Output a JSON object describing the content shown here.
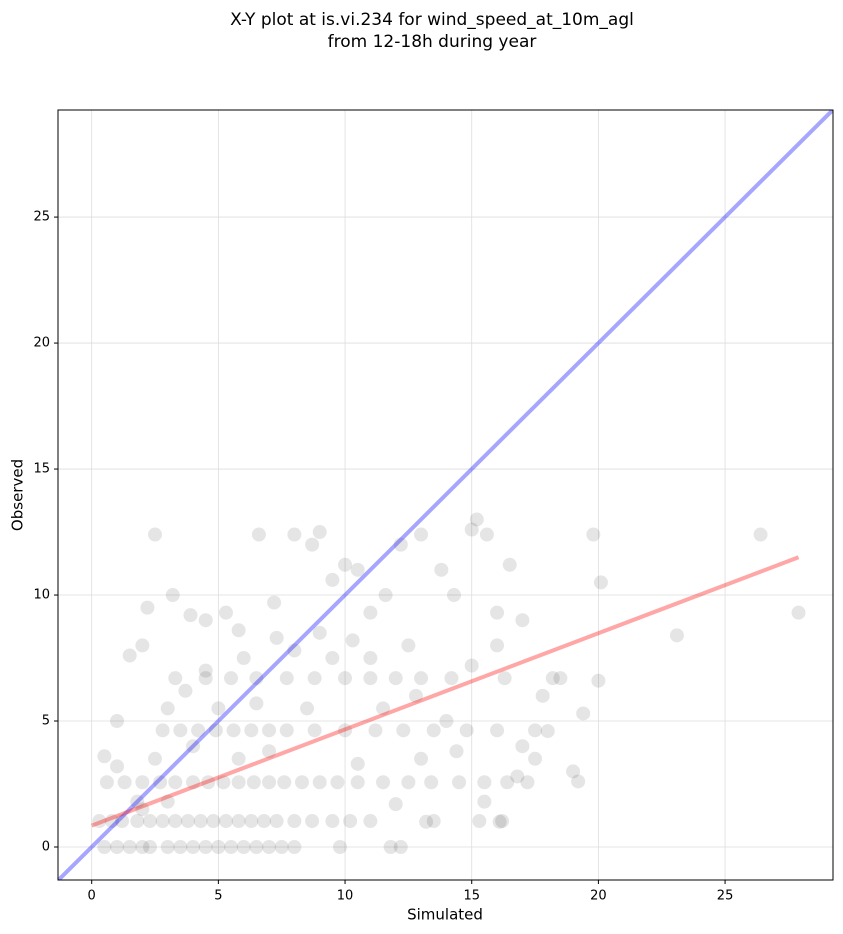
{
  "chart_data": {
    "type": "scatter",
    "title": [
      "X-Y plot at is.vi.234 for wind_speed_at_10m_agl",
      "from 12-18h during year"
    ],
    "x_label": "Simulated",
    "y_label": "Observed",
    "xlim": [
      -1.33,
      29.26
    ],
    "ylim": [
      -1.31,
      29.25
    ],
    "xticks": [
      0,
      5,
      10,
      15,
      20,
      25
    ],
    "yticks": [
      0,
      5,
      10,
      15,
      20,
      25
    ],
    "grid": true,
    "color": "#000000",
    "x": [
      0.5,
      1,
      1.5,
      2,
      2.3,
      3,
      3.5,
      4,
      4.5,
      5,
      5.5,
      6,
      6.5,
      7,
      7.5,
      8,
      9.8,
      11.8,
      12.2,
      0.3,
      0.8,
      1.2,
      1.8,
      2.3,
      2.8,
      3.3,
      3.8,
      4.3,
      4.8,
      5.3,
      5.8,
      6.3,
      6.8,
      7.3,
      8,
      8.7,
      9.5,
      10.2,
      11,
      13.5,
      15.3,
      16.2,
      0.6,
      1.3,
      2,
      2.7,
      3.3,
      4,
      4.6,
      5.2,
      5.8,
      6.4,
      7,
      7.6,
      8.3,
      9,
      9.7,
      10.5,
      11.5,
      12.5,
      13.4,
      14.5,
      15.5,
      16.4,
      17.2,
      2.8,
      3.5,
      4.2,
      4.9,
      5.6,
      6.3,
      7,
      7.7,
      8.8,
      10,
      11.2,
      12.3,
      13.5,
      14.8,
      16,
      17.5,
      3.3,
      4.5,
      5.5,
      6.5,
      7.7,
      8.8,
      10,
      11,
      12,
      13,
      14.2,
      16.3,
      18.2,
      0.5,
      1,
      1.5,
      2,
      2.5,
      2.2,
      3.2,
      3.9,
      4.5,
      5.3,
      5.8,
      6.6,
      7.2,
      8,
      8.7,
      9,
      9.5,
      10,
      10.5,
      11,
      11.6,
      12.2,
      13,
      13.8,
      14.3,
      15,
      15.2,
      15.6,
      16,
      16.5,
      17,
      17.8,
      18.5,
      19,
      19.8,
      20.1,
      19.4,
      19.2,
      20,
      23.1,
      26.4,
      27.9,
      15.5,
      16.1,
      17,
      1,
      1.8,
      2.5,
      3,
      3.7,
      4.5,
      5,
      5.8,
      6.5,
      7,
      8.5,
      9.5,
      10.5,
      11.5,
      12.5,
      13,
      14,
      15,
      16,
      12,
      13.2,
      10.3,
      9,
      8,
      11,
      12.8,
      14.4,
      16.8,
      17.5,
      18,
      7.3,
      6,
      4,
      3,
      2
    ],
    "y": [
      0,
      0,
      0,
      0,
      0,
      0,
      0,
      0,
      0,
      0,
      0,
      0,
      0,
      0,
      0,
      0,
      0,
      0,
      0,
      1.03,
      1.03,
      1.03,
      1.03,
      1.03,
      1.03,
      1.03,
      1.03,
      1.03,
      1.03,
      1.03,
      1.03,
      1.03,
      1.03,
      1.03,
      1.03,
      1.03,
      1.03,
      1.03,
      1.03,
      1.03,
      1.03,
      1.03,
      2.57,
      2.57,
      2.57,
      2.57,
      2.57,
      2.57,
      2.57,
      2.57,
      2.57,
      2.57,
      2.57,
      2.57,
      2.57,
      2.57,
      2.57,
      2.57,
      2.57,
      2.57,
      2.57,
      2.57,
      2.57,
      2.57,
      2.57,
      4.63,
      4.63,
      4.63,
      4.63,
      4.63,
      4.63,
      4.63,
      4.63,
      4.63,
      4.63,
      4.63,
      4.63,
      4.63,
      4.63,
      4.63,
      4.63,
      6.7,
      6.7,
      6.7,
      6.7,
      6.7,
      6.7,
      6.7,
      6.7,
      6.7,
      6.7,
      6.7,
      6.7,
      6.7,
      3.6,
      5,
      7.6,
      8,
      12.4,
      9.5,
      10,
      9.2,
      9,
      9.3,
      8.6,
      12.4,
      9.7,
      12.4,
      12,
      12.5,
      10.6,
      11.2,
      11,
      9.3,
      10,
      12,
      12.4,
      11,
      10,
      12.6,
      13,
      12.4,
      9.3,
      11.2,
      9,
      6,
      6.7,
      3,
      12.4,
      10.5,
      5.3,
      2.6,
      6.6,
      8.4,
      12.4,
      9.3,
      1.8,
      1,
      4,
      3.2,
      1.8,
      3.5,
      5.5,
      6.2,
      7,
      5.5,
      3.5,
      5.7,
      3.8,
      5.5,
      7.5,
      3.3,
      5.5,
      8,
      3.5,
      5,
      7.2,
      8,
      1.7,
      1,
      8.2,
      8.5,
      7.8,
      7.5,
      6,
      3.8,
      2.8,
      3.5,
      4.6,
      8.3,
      7.5,
      4,
      1.8,
      1.5
    ],
    "lines": [
      {
        "color": "#0000ff",
        "x": [
          -1.33,
          29.26
        ],
        "y": [
          -1.33,
          29.26
        ]
      },
      {
        "color": "#ff0000",
        "x": [
          0,
          27.9
        ],
        "y": [
          0.85,
          11.5
        ]
      }
    ]
  }
}
